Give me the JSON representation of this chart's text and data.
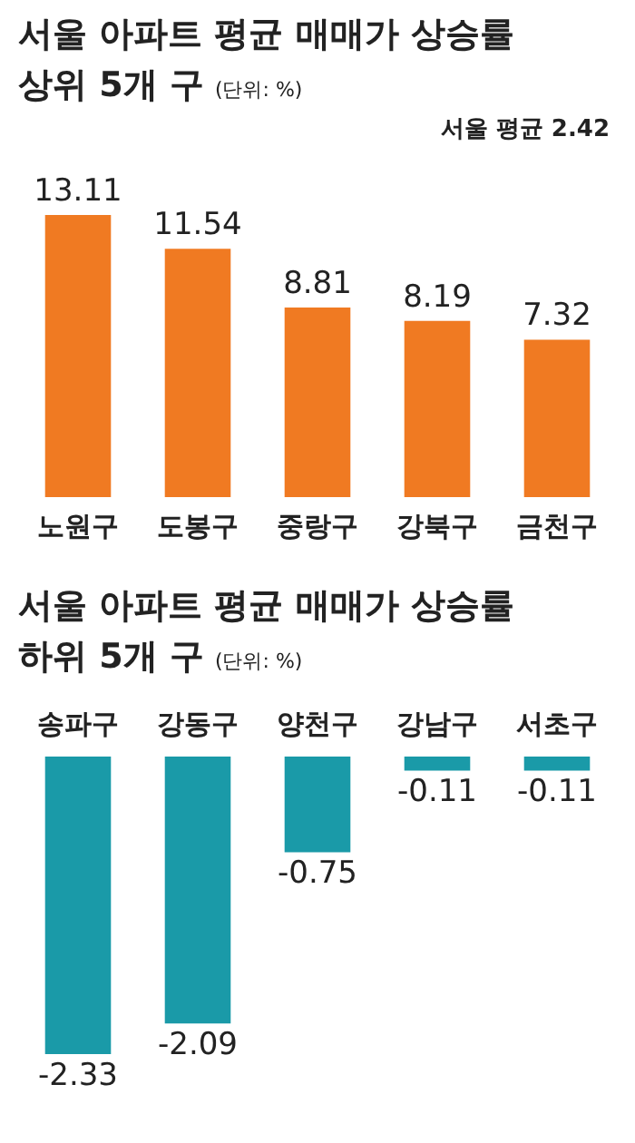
{
  "chart_data": [
    {
      "type": "bar",
      "title": "서울 아파트 평균 매매가 상승률",
      "subtitle": "상위 5개 구",
      "annotations": [
        "(단위: %)",
        "서울 평균 2.42"
      ],
      "categories": [
        "노원구",
        "도봉구",
        "중랑구",
        "강북구",
        "금천구"
      ],
      "values": [
        13.11,
        11.54,
        8.81,
        8.19,
        7.32
      ],
      "color": "#f07a22",
      "data_labels": true,
      "grid": false,
      "legend": false
    },
    {
      "type": "bar",
      "title": "서울 아파트 평균 매매가 상승률",
      "subtitle": "하위 5개 구",
      "annotations": [
        "(단위: %)"
      ],
      "categories": [
        "송파구",
        "강동구",
        "양천구",
        "강남구",
        "서초구"
      ],
      "values": [
        -2.33,
        -2.09,
        -0.75,
        -0.11,
        -0.11
      ],
      "color": "#1a9aa8",
      "data_labels": true,
      "grid": false,
      "legend": false
    }
  ]
}
